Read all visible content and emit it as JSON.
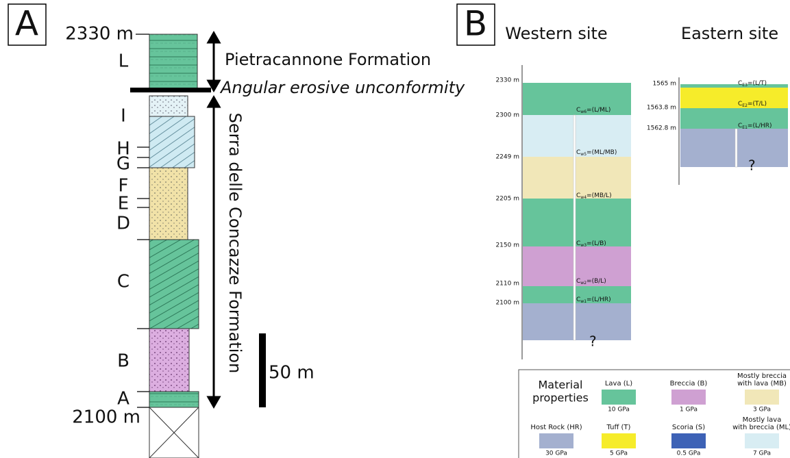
{
  "panel_a": {
    "label": "A",
    "top_elevation": "2330 m",
    "bottom_elevation": "2100 m",
    "units": [
      "L",
      "I",
      "H",
      "G",
      "F",
      "E",
      "D",
      "C",
      "B",
      "A"
    ],
    "upper_formation": "Pietracannone Formation",
    "unconformity": "Angular erosive unconformity",
    "lower_formation": "Serra delle Concazze Formation",
    "scale_bar": "50 m"
  },
  "panel_b": {
    "label": "B",
    "western_site": {
      "title": "Western site",
      "elevations": [
        "2330 m",
        "2300 m",
        "2249 m",
        "2205 m",
        "2150 m",
        "2110 m",
        "2100 m"
      ],
      "contacts": [
        {
          "symbol": "C",
          "subscript": "w6",
          "materials": "=(L/ML)"
        },
        {
          "symbol": "C",
          "subscript": "w5",
          "materials": "=(ML/MB)"
        },
        {
          "symbol": "C",
          "subscript": "w4",
          "materials": "=(MB/L)"
        },
        {
          "symbol": "C",
          "subscript": "w3",
          "materials": "=(L/B)"
        },
        {
          "symbol": "C",
          "subscript": "w2",
          "materials": "=(B/L)"
        },
        {
          "symbol": "C",
          "subscript": "w1",
          "materials": "=(L/HR)"
        }
      ],
      "unknown": "?"
    },
    "eastern_site": {
      "title": "Eastern site",
      "elevations": [
        "1565 m",
        "1563.8 m",
        "1562.8 m"
      ],
      "contacts": [
        {
          "symbol": "C",
          "subscript": "E3",
          "materials": "=(L/T)"
        },
        {
          "symbol": "C",
          "subscript": "E2",
          "materials": "=(T/L)"
        },
        {
          "symbol": "C",
          "subscript": "E1",
          "materials": "=(L/HR)"
        }
      ],
      "unknown": "?"
    }
  },
  "legend": {
    "title": [
      "Material",
      "properties"
    ],
    "items": [
      {
        "name": [
          "Lava (L)"
        ],
        "modulus": "10 GPa",
        "color": "#66c49b"
      },
      {
        "name": [
          "Breccia (B)"
        ],
        "modulus": "1 GPa",
        "color": "#cfa0d2"
      },
      {
        "name": [
          "Mostly breccia",
          "with lava (MB)"
        ],
        "modulus": "3 GPa",
        "color": "#f1e7b8"
      },
      {
        "name": [
          "Host Rock (HR)"
        ],
        "modulus": "30 GPa",
        "color": "#a4b0cf"
      },
      {
        "name": [
          "Tuff (T)"
        ],
        "modulus": "5 GPa",
        "color": "#f6ec2a"
      },
      {
        "name": [
          "Scoria (S)"
        ],
        "modulus": "0.5 GPa",
        "color": "#3d62b6"
      },
      {
        "name": [
          "Mostly lava",
          "with breccia (ML)"
        ],
        "modulus": "7 GPa",
        "color": "#d8edf3"
      }
    ]
  }
}
